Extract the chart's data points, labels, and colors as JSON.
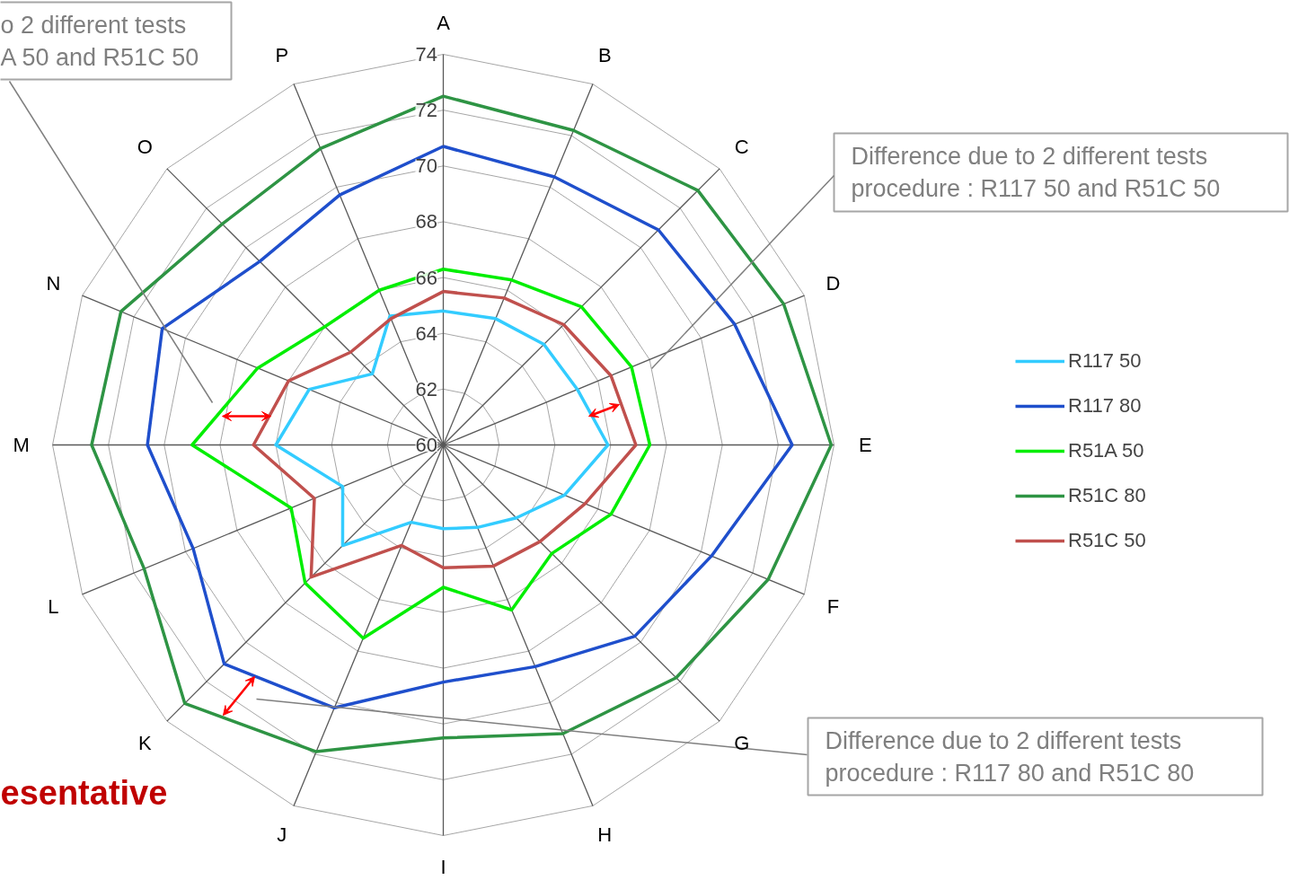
{
  "chart_data": {
    "type": "radar",
    "categories": [
      "A",
      "B",
      "C",
      "D",
      "E",
      "F",
      "G",
      "H",
      "I",
      "J",
      "K",
      "L",
      "M",
      "N",
      "O",
      "P"
    ],
    "ylim": [
      60,
      74
    ],
    "yticks": [
      60,
      62,
      64,
      66,
      68,
      70,
      72,
      74
    ],
    "grid": true,
    "legend": "right",
    "series": [
      {
        "name": "R117 50",
        "color": "#33ccff",
        "values": [
          64.8,
          64.9,
          65.1,
          65.2,
          65.9,
          64.7,
          63.7,
          63.2,
          63.0,
          63.0,
          65.1,
          63.9,
          66.0,
          65.2,
          63.6,
          65.0
        ]
      },
      {
        "name": "R117 80",
        "color": "#1f4fcc",
        "values": [
          70.7,
          70.4,
          70.9,
          71.3,
          72.5,
          70.4,
          69.7,
          68.6,
          68.5,
          70.2,
          71.1,
          69.7,
          70.6,
          70.9,
          69.3,
          69.7
        ]
      },
      {
        "name": "R51A 50",
        "color": "#00ee00",
        "values": [
          66.3,
          66.4,
          67.0,
          67.3,
          67.4,
          66.5,
          65.5,
          66.4,
          65.1,
          67.5,
          67.0,
          65.9,
          69.0,
          67.2,
          66.0,
          66.0
        ]
      },
      {
        "name": "R51C 80",
        "color": "#2e9444",
        "values": [
          72.5,
          72.2,
          72.9,
          73.2,
          73.9,
          72.6,
          71.8,
          71.2,
          70.5,
          71.9,
          73.1,
          71.6,
          72.6,
          72.5,
          71.2,
          71.5
        ]
      },
      {
        "name": "R51C 50",
        "color": "#c0504d",
        "values": [
          65.5,
          65.7,
          66.1,
          66.5,
          66.9,
          65.5,
          64.9,
          64.7,
          64.4,
          63.9,
          66.7,
          65.0,
          66.8,
          66.0,
          64.7,
          64.9
        ]
      }
    ],
    "annotations": [
      "o 2 different tests\nA 50 and R51C 50",
      "Difference due to 2 different tests\nprocedure : R117 50 and R51C 50",
      "Difference due to 2 different tests\nprocedure : R117 80 and R51C 80",
      "esentative"
    ]
  }
}
